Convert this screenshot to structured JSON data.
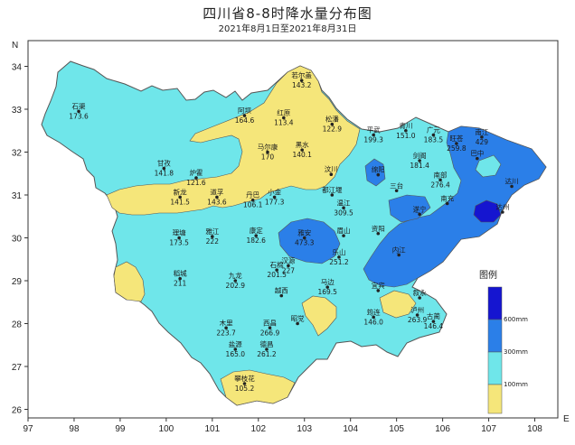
{
  "title": "四川省8-8时降水量分布图",
  "subtitle": "2021年8月1日至2021年8月31日",
  "colors": {
    "lt100": "#f5e67a",
    "r100_300": "#6fe6ea",
    "r300_600": "#2b7fe8",
    "ge600": "#1515d0",
    "border": "#555555"
  },
  "axes": {
    "x_ticks": [
      "97",
      "98",
      "99",
      "100",
      "101",
      "102",
      "103",
      "104",
      "105",
      "106",
      "107",
      "108"
    ],
    "y_ticks": [
      "26",
      "27",
      "28",
      "29",
      "30",
      "31",
      "32",
      "33",
      "34"
    ],
    "x_label": "E",
    "y_label": "N"
  },
  "legend": {
    "title": "图例",
    "labels": [
      "600mm",
      "300mm",
      "100mm"
    ]
  },
  "stations": [
    {
      "name": "若尔盖",
      "value": "143.2",
      "lon": 102.94,
      "lat": 33.67
    },
    {
      "name": "石渠",
      "value": "173.6",
      "lon": 98.1,
      "lat": 32.95
    },
    {
      "name": "阿坝",
      "value": "164.6",
      "lon": 101.7,
      "lat": 32.85
    },
    {
      "name": "红原",
      "value": "113.4",
      "lon": 102.55,
      "lat": 32.8
    },
    {
      "name": "松潘",
      "value": "122.9",
      "lon": 103.6,
      "lat": 32.65
    },
    {
      "name": "平武",
      "value": "199.3",
      "lon": 104.5,
      "lat": 32.4
    },
    {
      "name": "青川",
      "value": "151.0",
      "lon": 105.2,
      "lat": 32.5
    },
    {
      "name": "广元",
      "value": "183.5",
      "lon": 105.8,
      "lat": 32.4
    },
    {
      "name": "旺苍",
      "value": "259.8",
      "lon": 106.3,
      "lat": 32.2
    },
    {
      "name": "南江",
      "value": "429",
      "lon": 106.85,
      "lat": 32.35
    },
    {
      "name": "马尔康",
      "value": "170",
      "lon": 102.2,
      "lat": 32.0
    },
    {
      "name": "黑水",
      "value": "140.1",
      "lon": 102.95,
      "lat": 32.05
    },
    {
      "name": "巴中",
      "value": "",
      "lon": 106.75,
      "lat": 31.85
    },
    {
      "name": "甘孜",
      "value": "141.8",
      "lon": 99.95,
      "lat": 31.62
    },
    {
      "name": "炉霍",
      "value": "121.6",
      "lon": 100.65,
      "lat": 31.4
    },
    {
      "name": "汶川",
      "value": "",
      "lon": 103.58,
      "lat": 31.48
    },
    {
      "name": "绵阳",
      "value": "",
      "lon": 104.6,
      "lat": 31.47
    },
    {
      "name": "剑阁",
      "value": "181.4",
      "lon": 105.5,
      "lat": 31.8
    },
    {
      "name": "达川",
      "value": "",
      "lon": 107.5,
      "lat": 31.2
    },
    {
      "name": "新龙",
      "value": "141.5",
      "lon": 100.3,
      "lat": 30.95
    },
    {
      "name": "道孚",
      "value": "143.6",
      "lon": 101.1,
      "lat": 30.95
    },
    {
      "name": "丹巴",
      "value": "106.1",
      "lon": 101.88,
      "lat": 30.88
    },
    {
      "name": "小金",
      "value": "177.3",
      "lon": 102.35,
      "lat": 30.95
    },
    {
      "name": "都江堰",
      "value": "",
      "lon": 103.6,
      "lat": 31.0
    },
    {
      "name": "三台",
      "value": "",
      "lon": 105.0,
      "lat": 31.1
    },
    {
      "name": "南部",
      "value": "276.4",
      "lon": 105.95,
      "lat": 31.35
    },
    {
      "name": "温江",
      "value": "309.5",
      "lon": 103.85,
      "lat": 30.7
    },
    {
      "name": "遂宁",
      "value": "",
      "lon": 105.5,
      "lat": 30.55
    },
    {
      "name": "南充",
      "value": "",
      "lon": 106.1,
      "lat": 30.8
    },
    {
      "name": "达州",
      "value": "",
      "lon": 107.3,
      "lat": 30.6
    },
    {
      "name": "理塘",
      "value": "173.5",
      "lon": 100.28,
      "lat": 30.0
    },
    {
      "name": "雅江",
      "value": "222",
      "lon": 101.0,
      "lat": 30.03
    },
    {
      "name": "康定",
      "value": "182.6",
      "lon": 101.95,
      "lat": 30.05
    },
    {
      "name": "雅安",
      "value": "473.3",
      "lon": 103.0,
      "lat": 30.0
    },
    {
      "name": "眉山",
      "value": "",
      "lon": 103.85,
      "lat": 30.05
    },
    {
      "name": "资阳",
      "value": "",
      "lon": 104.6,
      "lat": 30.1
    },
    {
      "name": "内江",
      "value": "",
      "lon": 105.05,
      "lat": 29.6
    },
    {
      "name": "乐山",
      "value": "251.2",
      "lon": 103.75,
      "lat": 29.55
    },
    {
      "name": "稻城",
      "value": "211",
      "lon": 100.3,
      "lat": 29.05
    },
    {
      "name": "九龙",
      "value": "202.9",
      "lon": 101.5,
      "lat": 29.0
    },
    {
      "name": "石棉",
      "value": "201.5",
      "lon": 102.4,
      "lat": 29.25
    },
    {
      "name": "汉源",
      "value": "227",
      "lon": 102.65,
      "lat": 29.35
    },
    {
      "name": "马边",
      "value": "169.5",
      "lon": 103.5,
      "lat": 28.85
    },
    {
      "name": "宜宾",
      "value": "",
      "lon": 104.6,
      "lat": 28.77
    },
    {
      "name": "叙永",
      "value": "",
      "lon": 105.5,
      "lat": 28.6
    },
    {
      "name": "越西",
      "value": "",
      "lon": 102.5,
      "lat": 28.65
    },
    {
      "name": "昭觉",
      "value": "",
      "lon": 102.85,
      "lat": 28.0
    },
    {
      "name": "木里",
      "value": "223.7",
      "lon": 101.3,
      "lat": 27.9
    },
    {
      "name": "西昌",
      "value": "266.9",
      "lon": 102.25,
      "lat": 27.9
    },
    {
      "name": "盐源",
      "value": "165.0",
      "lon": 101.5,
      "lat": 27.4
    },
    {
      "name": "德昌",
      "value": "261.2",
      "lon": 102.18,
      "lat": 27.4
    },
    {
      "name": "筠连",
      "value": "146.0",
      "lon": 104.5,
      "lat": 28.15
    },
    {
      "name": "泸州",
      "value": "263.9",
      "lon": 105.45,
      "lat": 28.2
    },
    {
      "name": "攀枝花",
      "value": "105.2",
      "lon": 101.7,
      "lat": 26.6
    },
    {
      "name": "古蔺",
      "value": "146.4",
      "lon": 105.8,
      "lat": 28.05
    }
  ]
}
